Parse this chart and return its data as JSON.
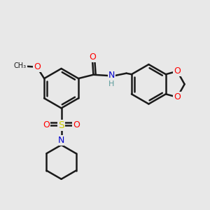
{
  "bg_color": "#e8e8e8",
  "bond_color": "#1a1a1a",
  "bond_width": 1.8,
  "atom_colors": {
    "O": "#ff0000",
    "N": "#0000cc",
    "S": "#cccc00",
    "C": "#1a1a1a",
    "H": "#5a9a9a"
  }
}
